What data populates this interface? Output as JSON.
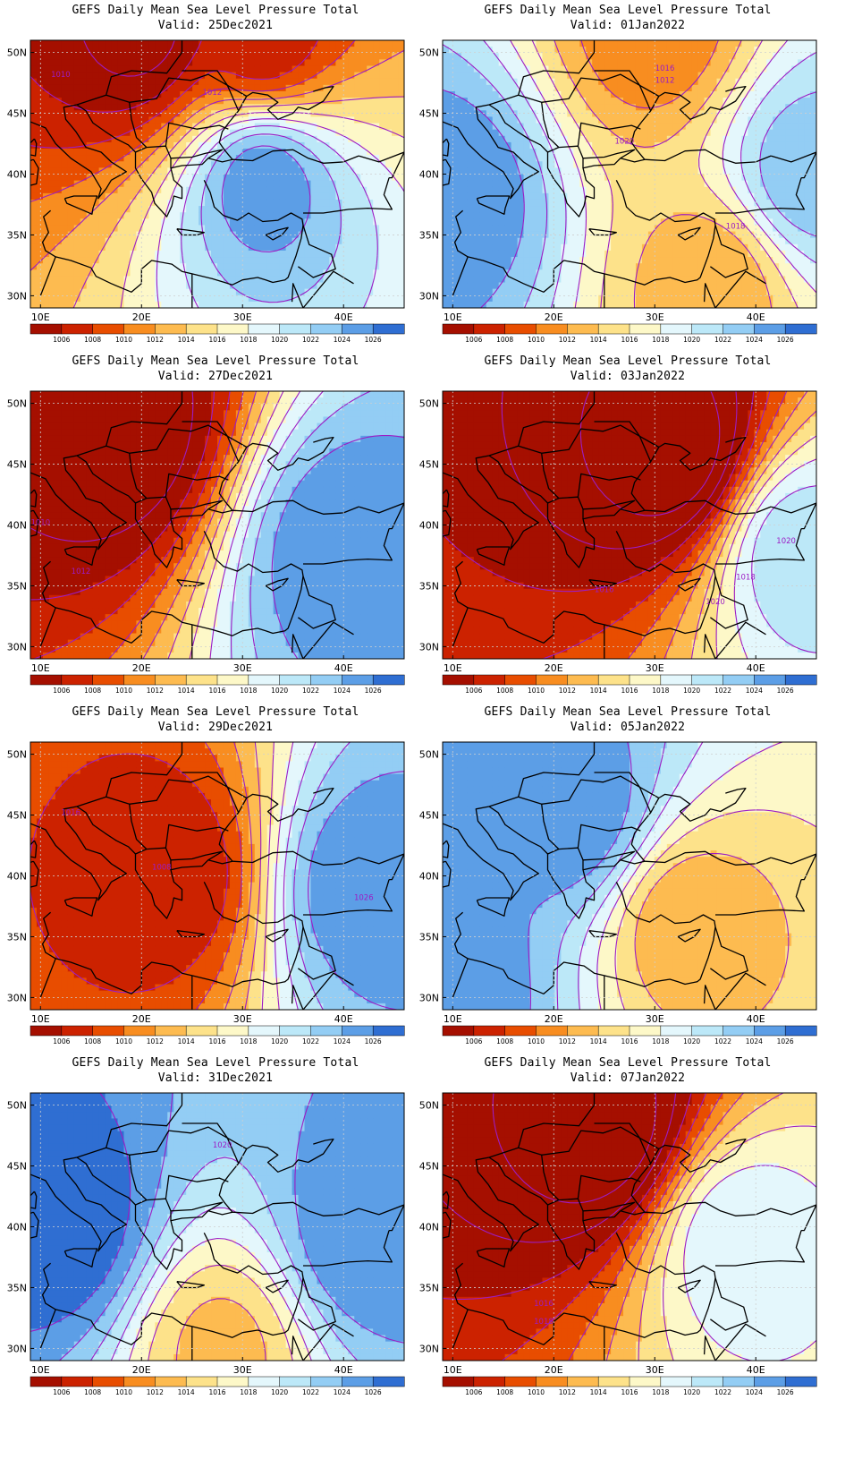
{
  "figure": {
    "panels": [
      {
        "title": "GEFS Daily Mean Sea Level Pressure Total",
        "valid": "Valid: 25Dec2021",
        "highs": [
          [
            32,
            39.5,
            1026
          ]
        ],
        "lows": [
          [
            20,
            52,
            1003
          ],
          [
            32,
            51,
            1006
          ]
        ],
        "contour_labels": [
          {
            "text": "1012",
            "lon": 27,
            "lat": 46.5
          },
          {
            "text": "1010",
            "lon": 12,
            "lat": 48
          }
        ]
      },
      {
        "title": "GEFS Daily Mean Sea Level Pressure Total",
        "valid": "Valid: 01Jan2022",
        "highs": [
          [
            10,
            38,
            1026
          ],
          [
            45,
            40,
            1024
          ]
        ],
        "lows": [
          [
            36,
            31,
            1012
          ],
          [
            30,
            52,
            1010
          ]
        ],
        "contour_labels": [
          {
            "text": "1016",
            "lon": 31,
            "lat": 48.5
          },
          {
            "text": "1012",
            "lon": 31,
            "lat": 47.5
          },
          {
            "text": "1020",
            "lon": 27,
            "lat": 42.5
          },
          {
            "text": "1018",
            "lon": 38,
            "lat": 35.5
          }
        ]
      },
      {
        "title": "GEFS Daily Mean Sea Level Pressure Total",
        "valid": "Valid: 27Dec2021",
        "highs": [
          [
            40,
            38,
            1026
          ]
        ],
        "lows": [
          [
            18,
            48,
            1002
          ]
        ],
        "contour_labels": [
          {
            "text": "1012",
            "lon": 14,
            "lat": 36
          },
          {
            "text": "1010",
            "lon": 10,
            "lat": 40
          }
        ]
      },
      {
        "title": "GEFS Daily Mean Sea Level Pressure Total",
        "valid": "Valid: 03Jan2022",
        "highs": [
          [
            44,
            38,
            1022
          ]
        ],
        "lows": [
          [
            32,
            46,
            1000
          ]
        ],
        "contour_labels": [
          {
            "text": "1016",
            "lon": 25,
            "lat": 34.5
          },
          {
            "text": "1018",
            "lon": 39,
            "lat": 35.5
          },
          {
            "text": "1020",
            "lon": 36,
            "lat": 33.5
          },
          {
            "text": "1020",
            "lon": 43,
            "lat": 38.5
          }
        ]
      },
      {
        "title": "GEFS Daily Mean Sea Level Pressure Total",
        "valid": "Valid: 29Dec2021",
        "highs": [
          [
            42,
            39,
            1026
          ]
        ],
        "lows": [
          [
            23,
            40,
            1006
          ]
        ],
        "contour_labels": [
          {
            "text": "1008",
            "lon": 22,
            "lat": 40.5
          },
          {
            "text": "1016",
            "lon": 13,
            "lat": 45
          },
          {
            "text": "1026",
            "lon": 42,
            "lat": 38
          }
        ]
      },
      {
        "title": "GEFS Daily Mean Sea Level Pressure Total",
        "valid": "Valid: 05Jan2022",
        "highs": [
          [
            22,
            45,
            1026
          ],
          [
            9,
            31,
            1026
          ]
        ],
        "lows": [
          [
            33,
            36,
            1012
          ]
        ],
        "contour_labels": []
      },
      {
        "title": "GEFS Daily Mean Sea Level Pressure Total",
        "valid": "Valid: 31Dec2021",
        "highs": [
          [
            12,
            40,
            1028
          ],
          [
            42,
            39,
            1026
          ]
        ],
        "lows": [
          [
            28,
            30,
            1013
          ]
        ],
        "contour_labels": [
          {
            "text": "1020",
            "lon": 28,
            "lat": 46.5
          }
        ]
      },
      {
        "title": "GEFS Daily Mean Sea Level Pressure Total",
        "valid": "Valid: 07Jan2022",
        "highs": [
          [
            38,
            39,
            1020
          ]
        ],
        "lows": [
          [
            25,
            48,
            1000
          ]
        ],
        "contour_labels": [
          {
            "text": "1016",
            "lon": 19,
            "lat": 33.5
          },
          {
            "text": "1018",
            "lon": 19,
            "lat": 32
          }
        ]
      }
    ]
  },
  "map": {
    "lon_range": [
      9,
      46
    ],
    "lat_range": [
      29,
      51
    ],
    "lon_ticks": [
      "10E",
      "20E",
      "30E",
      "40E"
    ],
    "lat_ticks": [
      "50N",
      "45N",
      "40N",
      "35N",
      "30N"
    ],
    "grid": true
  },
  "colorbar": {
    "labels": [
      "1006",
      "1008",
      "1010",
      "1012",
      "1014",
      "1016",
      "1018",
      "1020",
      "1022",
      "1024",
      "1026"
    ],
    "colors": [
      "#a50f00",
      "#cc2200",
      "#e84d00",
      "#f88d20",
      "#fdbb50",
      "#fde28a",
      "#fdf8c8",
      "#e4f7fc",
      "#bce8f8",
      "#93cdf4",
      "#5c9ee6",
      "#2f6ed2"
    ]
  },
  "style": {
    "contour_color": "#9c1cc4",
    "border_color": "#000000"
  }
}
